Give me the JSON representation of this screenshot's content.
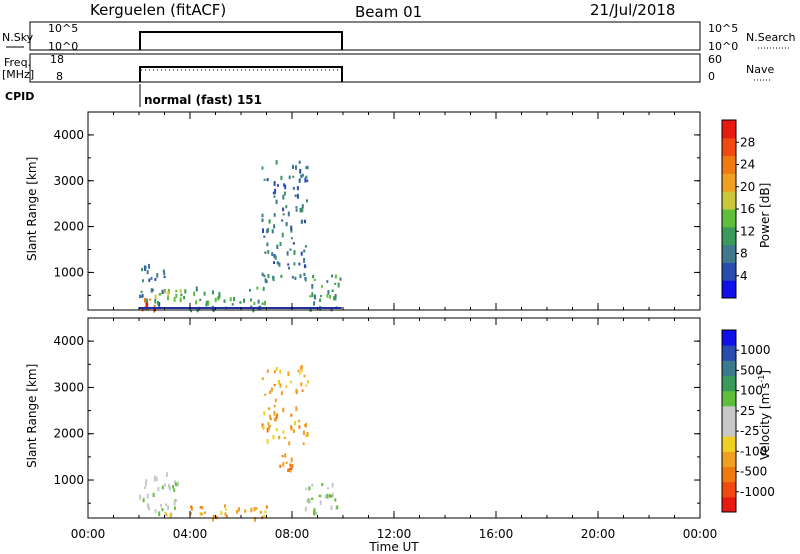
{
  "header": {
    "site": "Kerguelen (fitACF)",
    "beam": "Beam 01",
    "date": "21/Jul/2018"
  },
  "panels": {
    "nsky": {
      "label": "N.Sky",
      "ticks": [
        "10^5",
        "10^0"
      ],
      "right_ticks": [
        "10^5",
        "10^0"
      ],
      "right_label": "N.Search"
    },
    "freq": {
      "label_top": "Freq.",
      "label_bottom": "[MHz]",
      "ticks": [
        "18",
        "8"
      ],
      "right_ticks": [
        "60",
        "0"
      ],
      "right_label": "Nave"
    },
    "cpid": {
      "label": "CPID",
      "text": "normal (fast) 151"
    }
  },
  "chart_data": [
    {
      "type": "heatmap",
      "title": "",
      "xlabel": "",
      "ylabel": "Slant Range [km]",
      "xlim": [
        0,
        24
      ],
      "ylim": [
        180,
        4500
      ],
      "x_ticks": [],
      "y_ticks": [
        "1000",
        "2000",
        "3000",
        "4000"
      ],
      "colorbar": {
        "label": "Power [dB]",
        "ticks": [
          "4",
          "8",
          "12",
          "16",
          "20",
          "24",
          "28"
        ],
        "colors": [
          "#1010e8",
          "#2a4bb0",
          "#3f7a8c",
          "#3a9a5a",
          "#5fbf3a",
          "#c8c83a",
          "#f0a020",
          "#f07a10",
          "#f04a10",
          "#e81a10"
        ]
      },
      "data_window_ut": [
        2.0,
        9.95
      ],
      "echo_regions": [
        {
          "ut": [
            2.0,
            3.0
          ],
          "range_km": [
            300,
            1200
          ],
          "value": "6"
        },
        {
          "ut": [
            2.1,
            2.6
          ],
          "range_km": [
            200,
            450
          ],
          "value": "26"
        },
        {
          "ut": [
            2.6,
            4.0
          ],
          "range_km": [
            400,
            700
          ],
          "value": "12"
        },
        {
          "ut": [
            4.0,
            7.0
          ],
          "range_km": [
            180,
            700
          ],
          "value": "8"
        },
        {
          "ut": [
            6.8,
            8.6
          ],
          "range_km": [
            800,
            3500
          ],
          "value": "6"
        },
        {
          "ut": [
            8.5,
            9.9
          ],
          "range_km": [
            200,
            1000
          ],
          "value": "10"
        }
      ]
    },
    {
      "type": "heatmap",
      "title": "",
      "xlabel": "Time UT",
      "ylabel": "Slant Range [km]",
      "xlim": [
        0,
        24
      ],
      "ylim": [
        180,
        4500
      ],
      "x_ticks": [
        "00:00",
        "04:00",
        "08:00",
        "12:00",
        "16:00",
        "20:00",
        "00:00"
      ],
      "y_ticks": [
        "1000",
        "2000",
        "3000",
        "4000"
      ],
      "colorbar": {
        "label": "Velocity [m s-1]",
        "ticks": [
          "1000",
          "500",
          "100",
          "25",
          "-25",
          "-100",
          "-500",
          "-1000"
        ],
        "colors": [
          "#1010e8",
          "#2a4bb0",
          "#3a7a8a",
          "#3a9a5a",
          "#5fbf3a",
          "#c8c8c8",
          "#c8c8c8",
          "#f0d020",
          "#f0a020",
          "#f07a10",
          "#f04a10",
          "#e81a10"
        ]
      },
      "echo_regions": [
        {
          "ut": [
            2.0,
            3.5
          ],
          "range_km": [
            200,
            1200
          ],
          "value": "0"
        },
        {
          "ut": [
            3.0,
            7.0
          ],
          "range_km": [
            180,
            500
          ],
          "value": "-50"
        },
        {
          "ut": [
            7.5,
            8.0
          ],
          "range_km": [
            1200,
            1600
          ],
          "value": "-300"
        },
        {
          "ut": [
            6.8,
            8.6
          ],
          "range_km": [
            1800,
            3500
          ],
          "value": "-100"
        },
        {
          "ut": [
            8.5,
            9.9
          ],
          "range_km": [
            300,
            1000
          ],
          "value": "0"
        }
      ]
    }
  ],
  "colorbar_labels": {
    "power": "Power [dB]",
    "velocity_main": "Velocity [m s",
    "velocity_sup": "-1",
    "velocity_end": "]"
  }
}
